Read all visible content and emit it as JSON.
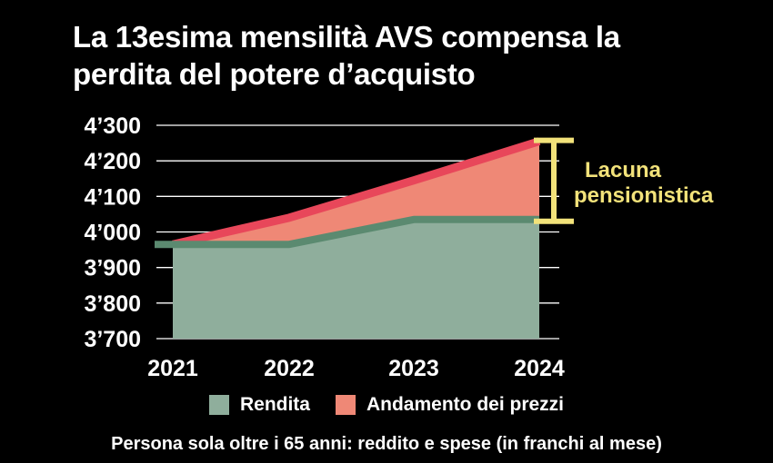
{
  "title": "La 13esima mensilità AVS compensa la perdita del potere d’acquisto",
  "footnote": "Persona sola oltre i 65 anni: reddito e spese (in franchi al mese)",
  "colors": {
    "background": "#000000",
    "rendita_fill": "#8fae9c",
    "rendita_line": "#5b8a70",
    "prezzi_fill": "#ef8876",
    "prezzi_line": "#e8475a",
    "gap_bracket": "#f2e27a"
  },
  "chart_data": {
    "type": "area",
    "title": "La 13esima mensilità AVS compensa la perdita del potere d’acquisto",
    "x": [
      "2021",
      "2022",
      "2023",
      "2024"
    ],
    "ylim": [
      3700,
      4300
    ],
    "yticks": [
      4300,
      4200,
      4100,
      4000,
      3900,
      3800,
      3700
    ],
    "ytick_labels": [
      "4’300",
      "4’200",
      "4’100",
      "4’000",
      "3’900",
      "3’800",
      "3’700"
    ],
    "grid": true,
    "legend_position": "bottom",
    "series": [
      {
        "name": "Rendita",
        "values": [
          3965,
          3965,
          4035,
          4035
        ]
      },
      {
        "name": "Andamento dei prezzi",
        "values": [
          3965,
          4040,
          4145,
          4255
        ]
      }
    ],
    "annotations": [
      {
        "text": "Lacuna pensionistica",
        "x": "2024",
        "from": 4035,
        "to": 4255
      }
    ]
  },
  "legend": {
    "items": [
      {
        "label": "Rendita"
      },
      {
        "label": "Andamento dei prezzi"
      }
    ]
  },
  "annotation": {
    "line1": "Lacuna",
    "line2": "pensionistica"
  }
}
